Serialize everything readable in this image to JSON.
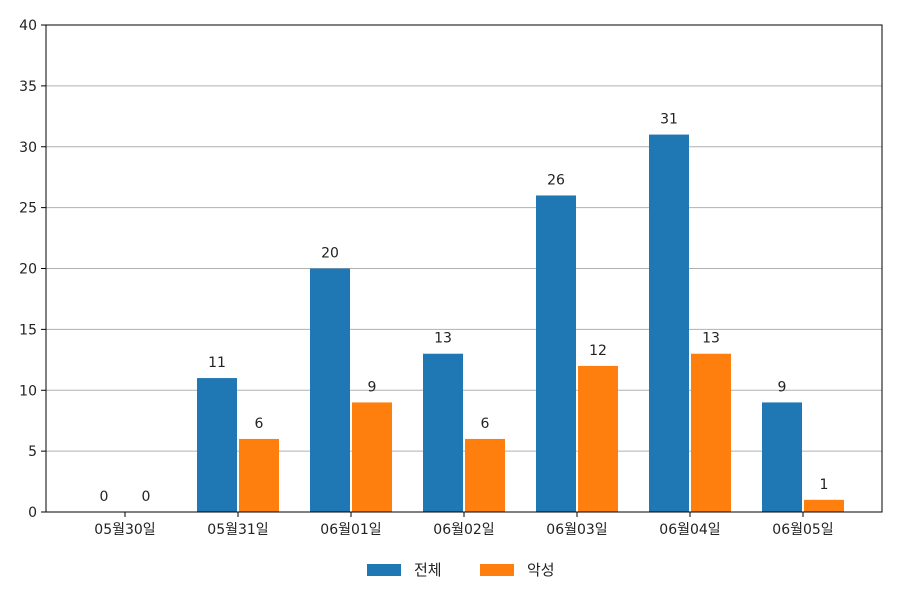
{
  "chart_data": {
    "type": "bar",
    "categories": [
      "05월30일",
      "05월31일",
      "06월01일",
      "06월02일",
      "06월03일",
      "06월04일",
      "06월05일"
    ],
    "series": [
      {
        "name": "전체",
        "values": [
          0,
          11,
          20,
          13,
          26,
          31,
          9
        ],
        "color": "#1f77b4"
      },
      {
        "name": "악성",
        "values": [
          0,
          6,
          9,
          6,
          12,
          13,
          1
        ],
        "color": "#ff7f0e"
      }
    ],
    "ylim": [
      0,
      40
    ],
    "yticks": [
      "0",
      "5",
      "10",
      "15",
      "20",
      "25",
      "30",
      "35",
      "40"
    ],
    "grid": "horizontal",
    "legend_position": "bottom-center",
    "title": "",
    "xlabel": "",
    "ylabel": ""
  }
}
